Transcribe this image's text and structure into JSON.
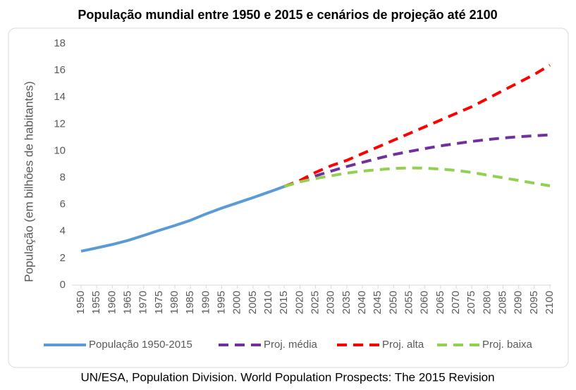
{
  "chart_data": {
    "type": "line",
    "title": "População mundial entre 1950 e 2015 e cenários de projeção até 2100",
    "y_label": "População (em bilhões de habitantes)",
    "source": "UN/ESA, Population Division. World Population Prospects: The 2015 Revision",
    "x": [
      1950,
      1955,
      1960,
      1965,
      1970,
      1975,
      1980,
      1985,
      1990,
      1995,
      2000,
      2005,
      2010,
      2015,
      2020,
      2025,
      2030,
      2035,
      2040,
      2045,
      2050,
      2055,
      2060,
      2065,
      2070,
      2075,
      2080,
      2085,
      2090,
      2095,
      2100
    ],
    "series": [
      {
        "name": "População 1950-2015",
        "color": "#5b9bd5",
        "dashed": false,
        "values": [
          2.53,
          2.77,
          3.03,
          3.33,
          3.7,
          4.08,
          4.44,
          4.83,
          5.31,
          5.74,
          6.13,
          6.52,
          6.93,
          7.35,
          null,
          null,
          null,
          null,
          null,
          null,
          null,
          null,
          null,
          null,
          null,
          null,
          null,
          null,
          null,
          null,
          null
        ]
      },
      {
        "name": "Proj. média",
        "color": "#7030a0",
        "dashed": true,
        "values": [
          null,
          null,
          null,
          null,
          null,
          null,
          null,
          null,
          null,
          null,
          null,
          null,
          null,
          7.35,
          7.76,
          8.14,
          8.5,
          8.84,
          9.15,
          9.45,
          9.73,
          9.96,
          10.18,
          10.38,
          10.55,
          10.71,
          10.85,
          10.97,
          11.06,
          11.13,
          11.2
        ]
      },
      {
        "name": "Proj. alta",
        "color": "#ff0000",
        "dashed": true,
        "values": [
          null,
          null,
          null,
          null,
          null,
          null,
          null,
          null,
          null,
          null,
          null,
          null,
          null,
          7.35,
          7.8,
          8.4,
          8.9,
          9.3,
          9.8,
          10.3,
          10.8,
          11.3,
          11.8,
          12.3,
          12.8,
          13.3,
          13.9,
          14.5,
          15.1,
          15.7,
          16.4
        ]
      },
      {
        "name": "Proj. baixa",
        "color": "#92d050",
        "dashed": true,
        "values": [
          null,
          null,
          null,
          null,
          null,
          null,
          null,
          null,
          null,
          null,
          null,
          null,
          null,
          7.35,
          7.7,
          7.95,
          8.15,
          8.35,
          8.5,
          8.6,
          8.7,
          8.73,
          8.72,
          8.65,
          8.55,
          8.4,
          8.2,
          8.0,
          7.8,
          7.6,
          7.4
        ]
      }
    ],
    "xlim": [
      1950,
      2100
    ],
    "xticks": [
      1950,
      1955,
      1960,
      1965,
      1970,
      1975,
      1980,
      1985,
      1990,
      1995,
      2000,
      2005,
      2010,
      2015,
      2020,
      2025,
      2030,
      2035,
      2040,
      2045,
      2050,
      2055,
      2060,
      2065,
      2070,
      2075,
      2080,
      2085,
      2090,
      2095,
      2100
    ],
    "ylim": [
      0,
      18
    ],
    "yticks": [
      0,
      2,
      4,
      6,
      8,
      10,
      12,
      14,
      16,
      18
    ],
    "grid": false,
    "legend": "bottom"
  }
}
